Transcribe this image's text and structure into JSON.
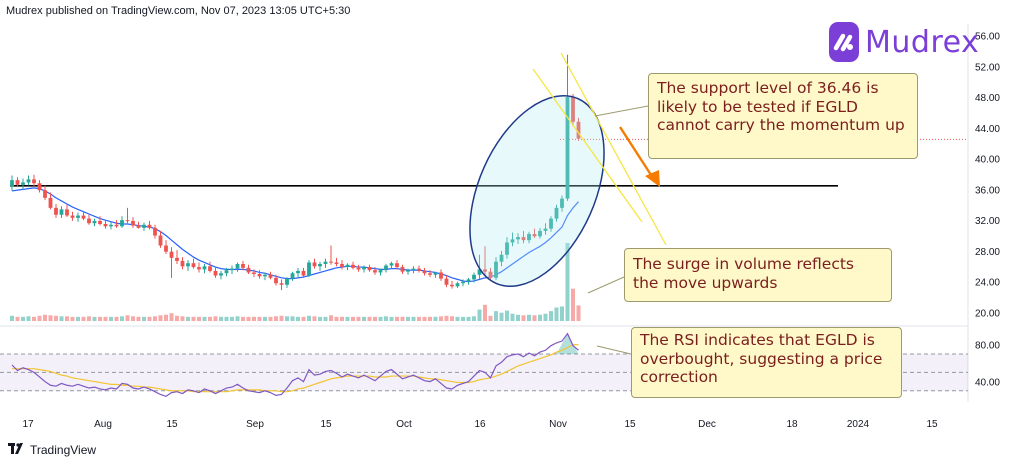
{
  "header": {
    "publisher_line": "Mudrex published on TradingView.com, Nov 07, 2023 13:05 UTC+5:30"
  },
  "brand": {
    "name": "Mudrex",
    "icon": "mudrex-logo-icon",
    "color": "#7b3fd8"
  },
  "footer": {
    "logo_icon": "tradingview-logo-icon",
    "label": "TradingView"
  },
  "callouts": [
    {
      "text": "The support level of 36.46 is likely to be tested if EGLD cannot carry the momentum up"
    },
    {
      "text": "The surge in volume reflects the move upwards"
    },
    {
      "text": "The RSI indicates that EGLD is overbought, suggesting a price correction"
    }
  ],
  "colors": {
    "up": "#26a69a",
    "down": "#ef5350",
    "ma": "#2962ff",
    "rsi_line": "#7e57c2",
    "rsi_ma": "#f3c431",
    "annotation_arrow": "#f57c00",
    "trend_lines": "#f5e642",
    "ellipse": "#1e3a8a",
    "callout_text": "#7a1e1e"
  },
  "chart_data": [
    {
      "type": "candlestick",
      "title": "",
      "symbol": "EGLD",
      "timeframe": "1D",
      "x_tick_labels": [
        "17",
        "Aug",
        "15",
        "Sep",
        "15",
        "Oct",
        "16",
        "Nov",
        "15",
        "Dec",
        "18",
        "2024",
        "15"
      ],
      "y_tick_labels": [
        "56.00",
        "52.00",
        "48.00",
        "44.00",
        "40.00",
        "36.00",
        "32.00",
        "28.00",
        "24.00",
        "20.00"
      ],
      "ylim": [
        18.5,
        57.5
      ],
      "support_level": 36.46,
      "resistance_dotted_level": 42.5,
      "grid": false,
      "candles_ohlc": [
        [
          36.4,
          37.8,
          35.8,
          37.2
        ],
        [
          37.2,
          37.6,
          36.3,
          36.6
        ],
        [
          36.6,
          37.4,
          36.0,
          36.9
        ],
        [
          36.9,
          37.8,
          36.5,
          37.3
        ],
        [
          37.3,
          37.9,
          36.4,
          36.8
        ],
        [
          36.8,
          37.2,
          35.6,
          35.9
        ],
        [
          35.9,
          36.5,
          34.6,
          34.9
        ],
        [
          34.9,
          35.6,
          33.4,
          33.6
        ],
        [
          33.6,
          34.1,
          32.3,
          32.7
        ],
        [
          32.7,
          33.8,
          32.3,
          33.4
        ],
        [
          33.4,
          34.0,
          32.4,
          32.6
        ],
        [
          32.6,
          33.1,
          31.9,
          32.3
        ],
        [
          32.3,
          33.0,
          31.8,
          32.6
        ],
        [
          32.6,
          33.2,
          32.0,
          32.2
        ],
        [
          32.2,
          32.7,
          31.4,
          31.6
        ],
        [
          31.6,
          32.2,
          31.2,
          31.9
        ],
        [
          31.9,
          32.5,
          31.3,
          31.5
        ],
        [
          31.5,
          32.0,
          30.9,
          31.2
        ],
        [
          31.2,
          31.8,
          30.8,
          31.4
        ],
        [
          31.4,
          32.0,
          31.0,
          31.2
        ],
        [
          31.2,
          32.5,
          31.0,
          32.0
        ],
        [
          32.0,
          33.6,
          31.6,
          31.9
        ],
        [
          31.9,
          32.4,
          31.0,
          31.3
        ],
        [
          31.3,
          31.8,
          30.9,
          31.0
        ],
        [
          31.0,
          31.7,
          30.6,
          31.4
        ],
        [
          31.4,
          31.9,
          30.8,
          31.0
        ],
        [
          31.0,
          31.4,
          29.6,
          30.0
        ],
        [
          30.0,
          30.6,
          28.4,
          28.7
        ],
        [
          28.7,
          29.4,
          27.6,
          27.9
        ],
        [
          27.9,
          28.5,
          24.5,
          27.1
        ],
        [
          27.1,
          28.1,
          26.3,
          26.7
        ],
        [
          26.7,
          27.2,
          25.6,
          26.0
        ],
        [
          26.0,
          26.8,
          25.4,
          26.4
        ],
        [
          26.4,
          27.0,
          25.7,
          25.9
        ],
        [
          25.9,
          26.5,
          25.2,
          25.6
        ],
        [
          25.6,
          26.3,
          25.1,
          26.0
        ],
        [
          26.0,
          26.6,
          25.2,
          25.4
        ],
        [
          25.4,
          25.9,
          24.5,
          24.8
        ],
        [
          24.8,
          25.4,
          24.3,
          25.1
        ],
        [
          25.1,
          25.8,
          24.7,
          25.5
        ],
        [
          25.5,
          26.1,
          25.0,
          25.7
        ],
        [
          25.7,
          26.5,
          25.3,
          26.3
        ],
        [
          26.3,
          26.7,
          25.5,
          25.8
        ],
        [
          25.8,
          26.2,
          25.0,
          25.2
        ],
        [
          25.2,
          25.6,
          24.6,
          25.0
        ],
        [
          25.0,
          25.5,
          24.4,
          24.7
        ],
        [
          24.7,
          25.2,
          24.2,
          24.9
        ],
        [
          24.9,
          25.3,
          24.3,
          24.5
        ],
        [
          24.5,
          24.9,
          23.5,
          23.8
        ],
        [
          23.8,
          24.3,
          22.9,
          23.6
        ],
        [
          23.6,
          24.6,
          23.2,
          24.4
        ],
        [
          24.4,
          25.3,
          24.1,
          25.1
        ],
        [
          25.1,
          25.8,
          24.6,
          25.4
        ],
        [
          25.4,
          25.8,
          24.5,
          24.8
        ],
        [
          24.8,
          26.8,
          24.6,
          26.5
        ],
        [
          26.5,
          27.0,
          25.7,
          26.0
        ],
        [
          26.0,
          26.6,
          25.4,
          26.3
        ],
        [
          26.3,
          27.0,
          25.8,
          26.6
        ],
        [
          26.6,
          28.7,
          26.2,
          26.5
        ],
        [
          26.5,
          27.1,
          26.0,
          26.3
        ],
        [
          26.3,
          26.8,
          25.6,
          25.9
        ],
        [
          25.9,
          26.4,
          25.5,
          26.2
        ],
        [
          26.2,
          26.6,
          25.6,
          25.8
        ],
        [
          25.8,
          26.2,
          25.3,
          25.6
        ],
        [
          25.6,
          26.1,
          25.2,
          25.9
        ],
        [
          25.9,
          26.2,
          25.3,
          25.5
        ],
        [
          25.5,
          25.9,
          24.9,
          25.2
        ],
        [
          25.2,
          25.7,
          24.8,
          25.5
        ],
        [
          25.5,
          26.3,
          25.2,
          26.1
        ],
        [
          26.1,
          26.6,
          25.7,
          26.4
        ],
        [
          26.4,
          26.8,
          25.6,
          25.9
        ],
        [
          25.9,
          26.2,
          25.0,
          25.3
        ],
        [
          25.3,
          25.7,
          24.9,
          25.5
        ],
        [
          25.5,
          26.0,
          25.1,
          25.7
        ],
        [
          25.7,
          26.1,
          25.2,
          25.4
        ],
        [
          25.4,
          25.8,
          24.8,
          25.1
        ],
        [
          25.1,
          25.5,
          24.6,
          24.9
        ],
        [
          24.9,
          25.3,
          24.5,
          25.2
        ],
        [
          25.2,
          25.6,
          24.1,
          24.4
        ],
        [
          24.4,
          24.8,
          23.3,
          23.6
        ],
        [
          23.6,
          24.1,
          23.1,
          23.4
        ],
        [
          23.4,
          24.0,
          23.2,
          23.8
        ],
        [
          23.8,
          24.3,
          23.4,
          24.0
        ],
        [
          24.0,
          24.5,
          23.6,
          24.3
        ],
        [
          24.3,
          25.2,
          23.9,
          24.9
        ],
        [
          24.9,
          27.5,
          24.4,
          25.6
        ],
        [
          25.6,
          28.6,
          24.8,
          25.3
        ],
        [
          25.3,
          25.8,
          24.1,
          24.5
        ],
        [
          24.5,
          27.2,
          24.2,
          26.6
        ],
        [
          26.6,
          28.0,
          26.0,
          27.5
        ],
        [
          27.5,
          29.8,
          27.0,
          29.1
        ],
        [
          29.1,
          30.4,
          28.6,
          29.5
        ],
        [
          29.5,
          30.3,
          28.9,
          29.8
        ],
        [
          29.8,
          30.6,
          29.0,
          29.4
        ],
        [
          29.4,
          30.5,
          29.0,
          30.2
        ],
        [
          30.2,
          30.9,
          29.7,
          29.9
        ],
        [
          29.9,
          31.0,
          29.6,
          30.6
        ],
        [
          30.6,
          31.6,
          30.1,
          30.9
        ],
        [
          30.9,
          32.5,
          30.5,
          32.2
        ],
        [
          32.2,
          34.0,
          31.8,
          33.6
        ],
        [
          33.6,
          35.2,
          33.1,
          34.8
        ],
        [
          34.8,
          53.5,
          34.5,
          48.0
        ],
        [
          48.0,
          48.4,
          44.2,
          44.8
        ],
        [
          44.8,
          45.3,
          42.3,
          42.6
        ]
      ],
      "moving_average": [
        35.8,
        35.9,
        36.0,
        36.1,
        36.2,
        36.1,
        35.8,
        35.4,
        34.9,
        34.5,
        34.1,
        33.7,
        33.4,
        33.1,
        32.8,
        32.5,
        32.2,
        32.0,
        31.8,
        31.6,
        31.5,
        31.5,
        31.4,
        31.3,
        31.2,
        31.1,
        30.9,
        30.5,
        30.0,
        29.4,
        28.8,
        28.2,
        27.7,
        27.2,
        26.8,
        26.5,
        26.2,
        25.9,
        25.7,
        25.6,
        25.6,
        25.6,
        25.6,
        25.5,
        25.4,
        25.2,
        25.1,
        24.9,
        24.7,
        24.5,
        24.4,
        24.4,
        24.5,
        24.6,
        24.8,
        25.0,
        25.2,
        25.4,
        25.6,
        25.8,
        25.9,
        26.0,
        26.0,
        25.9,
        25.9,
        25.8,
        25.7,
        25.6,
        25.6,
        25.7,
        25.7,
        25.6,
        25.5,
        25.5,
        25.5,
        25.4,
        25.3,
        25.2,
        25.0,
        24.8,
        24.5,
        24.3,
        24.1,
        24.0,
        24.1,
        24.3,
        24.5,
        24.6,
        24.9,
        25.3,
        25.8,
        26.3,
        26.8,
        27.3,
        27.8,
        28.2,
        28.6,
        29.1,
        29.7,
        30.4,
        31.1,
        32.6,
        33.6,
        34.4
      ],
      "volume": [
        1,
        0.8,
        0.8,
        0.9,
        0.8,
        1,
        1.2,
        1.1,
        1,
        0.9,
        0.9,
        0.8,
        0.8,
        0.8,
        0.9,
        0.8,
        0.8,
        0.8,
        0.8,
        0.8,
        0.9,
        1.1,
        0.9,
        0.8,
        0.8,
        0.8,
        0.9,
        1.1,
        1.2,
        1.5,
        1,
        0.9,
        0.8,
        0.8,
        0.8,
        0.8,
        0.8,
        0.9,
        0.8,
        0.8,
        0.8,
        0.9,
        0.8,
        0.8,
        0.8,
        0.8,
        0.8,
        0.8,
        0.9,
        1,
        0.9,
        0.9,
        0.8,
        0.8,
        1,
        0.9,
        0.8,
        0.8,
        1.1,
        0.8,
        0.8,
        0.8,
        0.8,
        0.8,
        0.8,
        0.8,
        0.8,
        0.8,
        0.9,
        0.8,
        0.8,
        0.8,
        0.8,
        0.8,
        0.8,
        0.8,
        0.8,
        0.8,
        0.9,
        1,
        0.9,
        0.8,
        0.8,
        0.8,
        0.9,
        2.2,
        3.1,
        1,
        1.9,
        1.6,
        2,
        1.4,
        1.2,
        1.1,
        1.2,
        1.1,
        1.2,
        1.4,
        1.9,
        2.6,
        2.8,
        15,
        6.2,
        3
      ]
    },
    {
      "type": "line",
      "title": "",
      "y_tick_labels": [
        "80.00",
        "40.00"
      ],
      "ylim": [
        20,
        96
      ],
      "band": [
        30,
        70
      ],
      "midline": 50,
      "series": [
        {
          "values": [
            58,
            52,
            55,
            53,
            50,
            45,
            40,
            36,
            35,
            38,
            36,
            35,
            37,
            35,
            33,
            34,
            32,
            31,
            33,
            32,
            38,
            37,
            33,
            32,
            34,
            32,
            29,
            26,
            24,
            28,
            29,
            27,
            31,
            30,
            28,
            32,
            30,
            27,
            30,
            33,
            34,
            37,
            33,
            30,
            29,
            28,
            30,
            28,
            25,
            26,
            33,
            41,
            44,
            40,
            53,
            47,
            48,
            51,
            52,
            49,
            45,
            48,
            46,
            44,
            47,
            44,
            41,
            46,
            51,
            53,
            48,
            43,
            45,
            47,
            44,
            41,
            40,
            43,
            38,
            33,
            32,
            36,
            38,
            40,
            46,
            52,
            50,
            44,
            57,
            61,
            67,
            69,
            70,
            67,
            71,
            68,
            72,
            74,
            79,
            82,
            84,
            92,
            79,
            74
          ]
        },
        {
          "values": [
            54,
            54,
            54,
            54,
            54,
            53,
            52,
            51,
            49,
            47,
            46,
            44,
            43,
            42,
            41,
            40,
            39,
            38,
            37,
            37,
            36,
            36,
            35,
            35,
            34,
            34,
            33,
            32,
            31,
            30,
            30,
            30,
            30,
            29,
            29,
            29,
            29,
            29,
            29,
            29,
            30,
            31,
            31,
            31,
            31,
            31,
            30,
            30,
            30,
            29,
            29,
            30,
            32,
            33,
            35,
            37,
            39,
            41,
            43,
            44,
            45,
            46,
            46,
            46,
            46,
            46,
            45,
            45,
            45,
            46,
            46,
            46,
            46,
            46,
            45,
            44,
            43,
            43,
            42,
            41,
            40,
            39,
            39,
            39,
            40,
            42,
            43,
            44,
            46,
            48,
            51,
            54,
            57,
            59,
            61,
            63,
            65,
            67,
            69,
            72,
            74,
            77,
            80,
            80
          ]
        }
      ]
    }
  ]
}
